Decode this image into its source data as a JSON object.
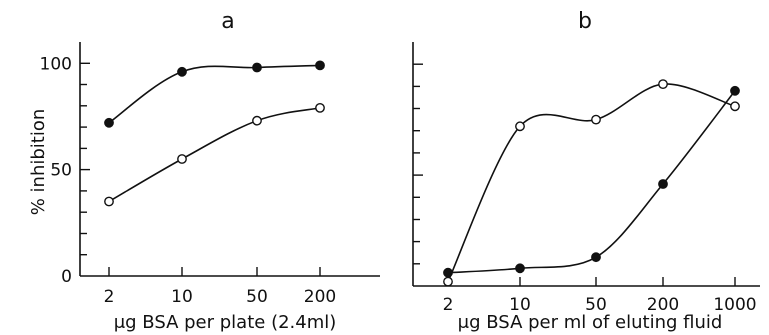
{
  "chart_data": [
    {
      "type": "line",
      "title": "a",
      "xlabel": "μg BSA per plate (2.4ml)",
      "ylabel": "% inhibition",
      "x_scale": "log",
      "categories": [
        "2",
        "10",
        "50",
        "200"
      ],
      "xlim": [
        2,
        400
      ],
      "ylim": [
        0,
        110
      ],
      "yticks": [
        "0",
        "50",
        "100"
      ],
      "grid": false,
      "series": [
        {
          "marker": "filled-circle",
          "x": [
            2,
            10,
            50,
            200
          ],
          "values": [
            72,
            96,
            98,
            99
          ]
        },
        {
          "marker": "open-circle",
          "x": [
            2,
            10,
            50,
            200
          ],
          "values": [
            35,
            55,
            73,
            79
          ]
        }
      ]
    },
    {
      "type": "line",
      "title": "b",
      "xlabel": "μg BSA per ml of eluting fluid",
      "ylabel": "",
      "x_scale": "log",
      "categories": [
        "2",
        "10",
        "50",
        "200",
        "1000"
      ],
      "xlim": [
        1.55,
        1100
      ],
      "ylim": [
        0,
        110
      ],
      "grid": false,
      "series": [
        {
          "marker": "filled-circle",
          "x": [
            2,
            10,
            50,
            200,
            1000
          ],
          "values": [
            6,
            8,
            13,
            46,
            88
          ]
        },
        {
          "marker": "open-circle",
          "x": [
            2,
            10,
            50,
            200,
            1000
          ],
          "values": [
            2,
            72,
            75,
            91,
            81
          ]
        }
      ]
    }
  ]
}
